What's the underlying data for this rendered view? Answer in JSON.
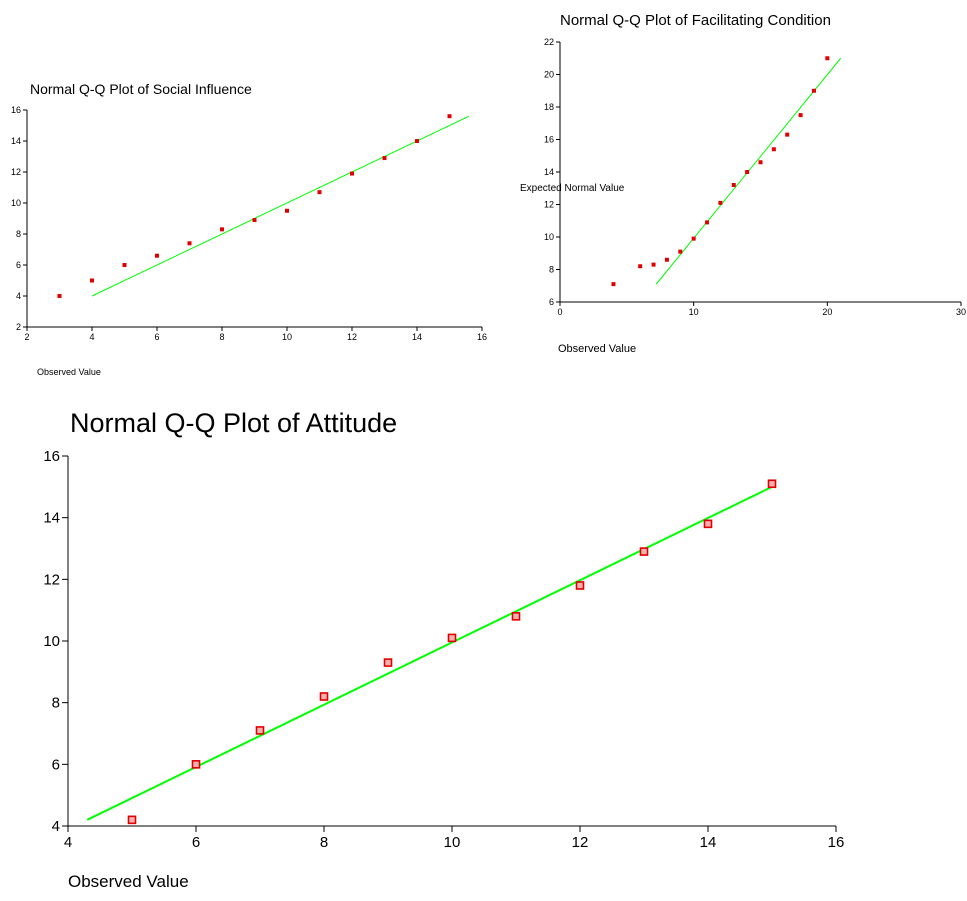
{
  "colors": {
    "fit_line": "#00ff00",
    "points": "#e00000",
    "axis": "#000000"
  },
  "chart_data": [
    {
      "id": "social",
      "type": "scatter",
      "title": "Normal Q-Q Plot of Social Influence",
      "xlabel": "Observed Value",
      "ylabel": "",
      "xlim": [
        2,
        16
      ],
      "ylim": [
        2,
        16
      ],
      "xticks": [
        2,
        4,
        6,
        8,
        10,
        12,
        14,
        16
      ],
      "yticks": [
        2,
        4,
        6,
        8,
        10,
        12,
        14,
        16
      ],
      "grid": false,
      "points": [
        {
          "x": 3,
          "y": 4.0
        },
        {
          "x": 4,
          "y": 5.0
        },
        {
          "x": 5,
          "y": 6.0
        },
        {
          "x": 6,
          "y": 6.6
        },
        {
          "x": 7,
          "y": 7.4
        },
        {
          "x": 8,
          "y": 8.3
        },
        {
          "x": 9,
          "y": 8.9
        },
        {
          "x": 10,
          "y": 9.5
        },
        {
          "x": 11,
          "y": 10.7
        },
        {
          "x": 12,
          "y": 11.9
        },
        {
          "x": 13,
          "y": 12.9
        },
        {
          "x": 14,
          "y": 14.0
        },
        {
          "x": 15,
          "y": 15.6
        }
      ],
      "fit_line": [
        {
          "x": 4,
          "y": 4.0
        },
        {
          "x": 15.6,
          "y": 15.6
        }
      ]
    },
    {
      "id": "facilitating",
      "type": "scatter",
      "title": "Normal Q-Q Plot of Facilitating Condition",
      "xlabel": "Observed Value",
      "ylabel": "Expected Normal Value",
      "xlim": [
        0,
        30
      ],
      "ylim": [
        6,
        22
      ],
      "xticks": [
        0,
        10,
        20,
        30
      ],
      "yticks": [
        6,
        8,
        10,
        12,
        14,
        16,
        18,
        20,
        22
      ],
      "grid": false,
      "points": [
        {
          "x": 4,
          "y": 7.1
        },
        {
          "x": 6,
          "y": 8.2
        },
        {
          "x": 7,
          "y": 8.3
        },
        {
          "x": 8,
          "y": 8.6
        },
        {
          "x": 9,
          "y": 9.1
        },
        {
          "x": 10,
          "y": 9.9
        },
        {
          "x": 11,
          "y": 10.9
        },
        {
          "x": 12,
          "y": 12.1
        },
        {
          "x": 13,
          "y": 13.2
        },
        {
          "x": 14,
          "y": 14.0
        },
        {
          "x": 15,
          "y": 14.6
        },
        {
          "x": 16,
          "y": 15.4
        },
        {
          "x": 17,
          "y": 16.3
        },
        {
          "x": 18,
          "y": 17.5
        },
        {
          "x": 19,
          "y": 19.0
        },
        {
          "x": 20,
          "y": 21.0
        }
      ],
      "fit_line": [
        {
          "x": 7.2,
          "y": 7.1
        },
        {
          "x": 21.0,
          "y": 21.0
        }
      ]
    },
    {
      "id": "attitude",
      "type": "scatter",
      "title": "Normal Q-Q Plot of Attitude",
      "xlabel": "Observed Value",
      "ylabel": "",
      "xlim": [
        4,
        16
      ],
      "ylim": [
        4,
        16
      ],
      "xticks": [
        4,
        6,
        8,
        10,
        12,
        14,
        16
      ],
      "yticks": [
        4,
        6,
        8,
        10,
        12,
        14,
        16
      ],
      "grid": false,
      "points": [
        {
          "x": 5,
          "y": 4.2
        },
        {
          "x": 6,
          "y": 6.0
        },
        {
          "x": 7,
          "y": 7.1
        },
        {
          "x": 8,
          "y": 8.2
        },
        {
          "x": 9,
          "y": 9.3
        },
        {
          "x": 10,
          "y": 10.1
        },
        {
          "x": 11,
          "y": 10.8
        },
        {
          "x": 12,
          "y": 11.8
        },
        {
          "x": 13,
          "y": 12.9
        },
        {
          "x": 14,
          "y": 13.8
        },
        {
          "x": 15,
          "y": 15.1
        }
      ],
      "fit_line": [
        {
          "x": 4.3,
          "y": 4.2
        },
        {
          "x": 15.0,
          "y": 15.0
        }
      ]
    }
  ]
}
